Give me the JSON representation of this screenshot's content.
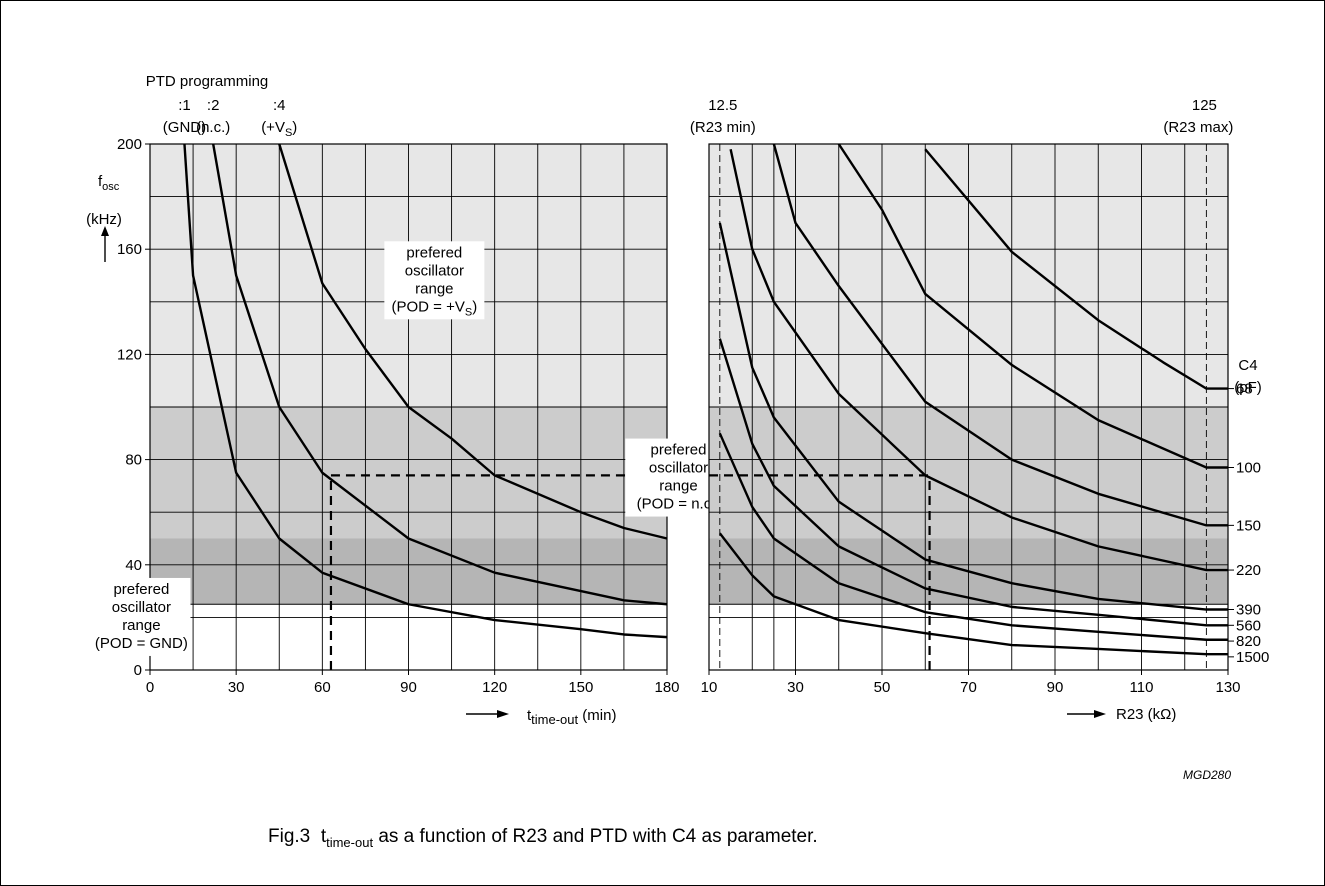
{
  "caption": {
    "label": "Fig.3",
    "main": "t",
    "sub": "time-out",
    "rest": " as a function of R23 and PTD with C4 as parameter."
  },
  "figure_code": "MGD280",
  "colors": {
    "band_top": "#e7e7e7",
    "band_mid": "#cccccc",
    "band_low": "#b5b5b5",
    "grid": "#000000",
    "curve": "#000000"
  },
  "chart_data": [
    {
      "type": "line",
      "title": "",
      "ptd_header": "PTD programming",
      "ptd_labels": [
        {
          "ratio": ":1",
          "pin": "(GND)",
          "x": 12
        },
        {
          "ratio": ":2",
          "pin": "(n.c.)",
          "x": 22
        },
        {
          "ratio": ":4",
          "pin": "(+V",
          "pin_sub": "S",
          "pin_end": ")",
          "x": 45
        }
      ],
      "ylabel": {
        "main": "f",
        "sub": "osc",
        "unit": "(kHz)"
      },
      "xlabel": {
        "main": "t",
        "sub": "time-out",
        "unit": "(min)"
      },
      "xlim": [
        0,
        180
      ],
      "ylim": [
        0,
        200
      ],
      "xticks": [
        0,
        30,
        60,
        90,
        120,
        150,
        180
      ],
      "yticks": [
        0,
        40,
        80,
        120,
        160,
        200
      ],
      "grid": true,
      "xgrid": [
        15,
        30,
        45,
        60,
        75,
        90,
        105,
        120,
        135,
        150,
        165
      ],
      "ygrid": [
        20,
        25,
        40,
        60,
        80,
        100,
        120,
        140,
        160,
        180
      ],
      "bands": [
        {
          "from": 100,
          "to": 200,
          "shade": "band_top",
          "text": [
            "prefered",
            "oscillator",
            "range",
            "(POD = +V"
          ],
          "sub": "S",
          "end": ")",
          "at": [
            99,
            163
          ]
        },
        {
          "from": 50,
          "to": 100,
          "shade": "band_mid",
          "text": [
            "prefered",
            "oscillator",
            "range",
            "(POD = n.c.)"
          ],
          "at": [
            184,
            88
          ]
        },
        {
          "from": 25,
          "to": 50,
          "shade": "band_low",
          "text": [
            "prefered",
            "oscillator",
            "range",
            "(POD = GND)"
          ],
          "at": [
            -3,
            35
          ]
        }
      ],
      "series": [
        {
          "x": [
            12,
            15,
            30,
            45,
            60,
            90,
            120,
            150,
            165,
            180
          ],
          "y": [
            200,
            150,
            75,
            50,
            37,
            25,
            19,
            15.5,
            13.5,
            12.5
          ]
        },
        {
          "x": [
            22,
            30,
            45,
            60,
            90,
            120,
            150,
            165,
            180
          ],
          "y": [
            200,
            150,
            100,
            75,
            50,
            37,
            30,
            26.5,
            25
          ]
        },
        {
          "x": [
            45,
            60,
            75,
            90,
            105,
            120,
            150,
            165,
            180
          ],
          "y": [
            200,
            147,
            122,
            100,
            88,
            74,
            60,
            54,
            50
          ]
        }
      ],
      "guides": [
        {
          "x": [
            63,
            63
          ],
          "y": [
            0,
            74
          ]
        },
        {
          "x": [
            63,
            180
          ],
          "y": [
            74,
            74
          ]
        }
      ]
    },
    {
      "type": "line",
      "title": "",
      "xlabel": {
        "main": "R23",
        "unit": "(kΩ)"
      },
      "xlim": [
        10,
        130
      ],
      "ylim": [
        0,
        200
      ],
      "xticks": [
        10,
        30,
        50,
        70,
        90,
        110,
        130
      ],
      "grid": true,
      "xgrid": [
        12.5,
        20,
        25,
        30,
        40,
        50,
        60,
        70,
        80,
        90,
        100,
        110,
        120,
        125
      ],
      "ygrid": [
        20,
        25,
        40,
        60,
        80,
        100,
        120,
        140,
        160,
        180
      ],
      "bands": [
        {
          "from": 100,
          "to": 200,
          "shade": "band_top"
        },
        {
          "from": 50,
          "to": 100,
          "shade": "band_mid"
        },
        {
          "from": 25,
          "to": 50,
          "shade": "band_low"
        }
      ],
      "markers": [
        {
          "value": "12.5",
          "label": "(R23 min)",
          "x": 12.5
        },
        {
          "value": "125",
          "label": "(R23 max)",
          "x": 125
        }
      ],
      "legend_title": [
        "C4",
        "(pF)"
      ],
      "series": [
        {
          "name": "68",
          "label_y": 107,
          "x": [
            60,
            80,
            100,
            115,
            125,
            130
          ],
          "y": [
            198,
            159,
            133,
            117,
            107,
            107
          ]
        },
        {
          "name": "100",
          "label_y": 77,
          "x": [
            40,
            50,
            60,
            80,
            100,
            125,
            130
          ],
          "y": [
            200,
            175,
            143,
            116,
            95,
            77,
            77
          ]
        },
        {
          "name": "150",
          "label_y": 55,
          "x": [
            25,
            30,
            40,
            60,
            80,
            100,
            125,
            130
          ],
          "y": [
            200,
            170,
            146,
            102,
            80,
            67,
            55,
            55
          ]
        },
        {
          "name": "220",
          "label_y": 38,
          "x": [
            15,
            20,
            25,
            40,
            60,
            80,
            100,
            125,
            130
          ],
          "y": [
            198,
            160,
            140,
            105,
            74,
            58,
            47,
            38,
            38
          ]
        },
        {
          "name": "390",
          "label_y": 23,
          "x": [
            12.5,
            20,
            25,
            40,
            60,
            80,
            100,
            125,
            130
          ],
          "y": [
            170,
            115,
            96,
            64,
            42,
            33,
            27,
            23,
            23
          ]
        },
        {
          "name": "560",
          "label_y": 17,
          "x": [
            12.5,
            20,
            25,
            40,
            60,
            80,
            100,
            125,
            130
          ],
          "y": [
            126,
            86,
            70,
            47,
            31,
            24,
            21,
            17,
            17
          ]
        },
        {
          "name": "820",
          "label_y": 11,
          "x": [
            12.5,
            20,
            25,
            40,
            60,
            80,
            100,
            125,
            130
          ],
          "y": [
            90,
            62,
            50,
            33,
            22,
            17,
            14.5,
            11.5,
            11.5
          ]
        },
        {
          "name": "1500",
          "label_y": 5,
          "x": [
            12.5,
            20,
            25,
            40,
            60,
            80,
            100,
            125,
            130
          ],
          "y": [
            52,
            36,
            28,
            19,
            14,
            9.5,
            8,
            6,
            6
          ]
        }
      ],
      "guides": [
        {
          "x": [
            10,
            61
          ],
          "y": [
            74,
            74
          ]
        },
        {
          "x": [
            61,
            61
          ],
          "y": [
            0,
            74
          ]
        }
      ]
    }
  ]
}
